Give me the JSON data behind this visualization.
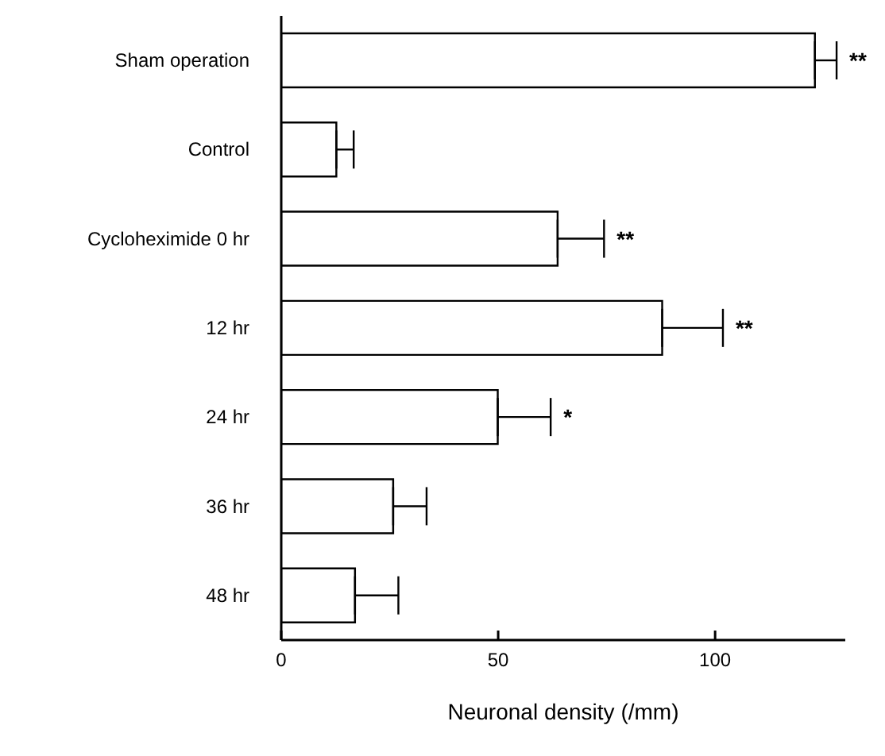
{
  "chart_data": {
    "type": "bar",
    "orientation": "horizontal",
    "xlabel": "Neuronal density (/mm)",
    "categories": [
      "Sham operation",
      "Control",
      "Cycloheximide  0 hr",
      "12 hr",
      "24 hr",
      "36 hr",
      "48 hr"
    ],
    "values": [
      123,
      12.7,
      63.7,
      87.8,
      49.9,
      25.8,
      17
    ],
    "errors": [
      [
        123,
        128
      ],
      [
        12.7,
        16.7
      ],
      [
        63.7,
        74.4
      ],
      [
        87.8,
        101.8
      ],
      [
        49.9,
        62.1
      ],
      [
        25.8,
        33.5
      ],
      [
        17,
        27
      ]
    ],
    "color": "#ffffff",
    "xlim": [
      0,
      130
    ],
    "xticks": [
      0,
      50,
      100
    ],
    "annotations": [
      {
        "text": "**",
        "x": 128,
        "y": "Sham operation"
      },
      {
        "text": "**",
        "x": 74.4,
        "y": "Cycloheximide  0 hr"
      },
      {
        "text": "**",
        "x": 101.8,
        "y": "12 hr"
      },
      {
        "text": "*",
        "x": 62.1,
        "y": "24 hr"
      }
    ]
  }
}
